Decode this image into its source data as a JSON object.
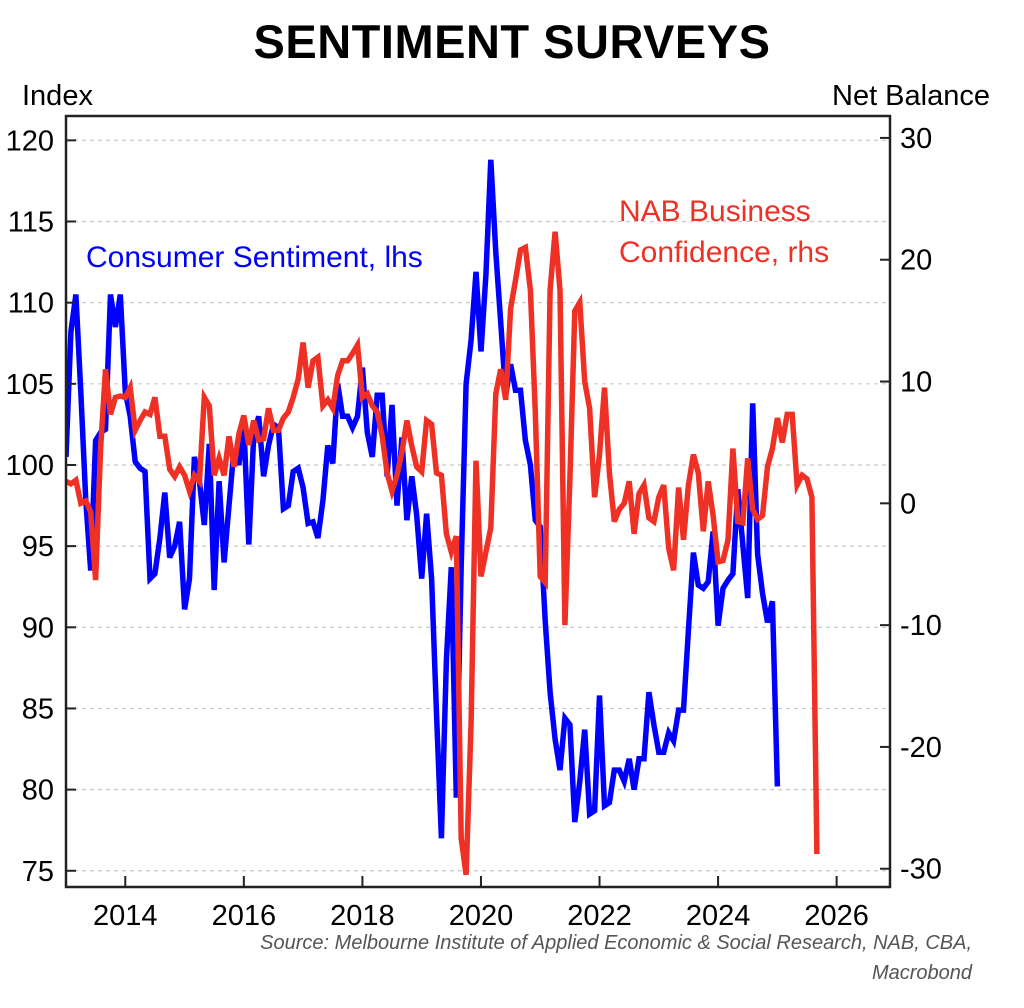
{
  "chart_data": {
    "type": "line",
    "title": "SENTIMENT SURVEYS",
    "lhs_label": "Index",
    "rhs_label": "Net Balance",
    "source_line1": "Source: Melbourne Institute of Applied Economic & Social Research, NAB, CBA,",
    "source_line2": "Macrobond",
    "x_ticks": [
      "2014",
      "2016",
      "2018",
      "2020",
      "2022",
      "2024",
      "2026"
    ],
    "x_tick_values": [
      2014,
      2016,
      2018,
      2020,
      2022,
      2024,
      2026
    ],
    "xlim": [
      2013.0,
      2026.9
    ],
    "lhs_ticks": [
      "120",
      "115",
      "110",
      "105",
      "100",
      "95",
      "90",
      "85",
      "80",
      "75"
    ],
    "lhs_tick_values": [
      120,
      115,
      110,
      105,
      100,
      95,
      90,
      85,
      80,
      75
    ],
    "lhs_ylim": [
      74,
      121.5
    ],
    "rhs_ticks": [
      "30",
      "20",
      "10",
      "0",
      "-10",
      "-20",
      "-30"
    ],
    "rhs_tick_values": [
      30,
      20,
      10,
      0,
      -10,
      -20,
      -30
    ],
    "rhs_ylim": [
      -31.5,
      31.8
    ],
    "grid": true,
    "series": [
      {
        "name": "Consumer Sentiment, lhs",
        "axis": "lhs",
        "color": "#0000ff",
        "x_start": 2013.0,
        "x_step_months": 1,
        "values": [
          100.5,
          108.2,
          110.5,
          104.5,
          97.8,
          93.5,
          101.5,
          102.0,
          102.2,
          110.5,
          108.5,
          110.5,
          104.5,
          103.0,
          100.2,
          99.8,
          99.6,
          93.0,
          93.3,
          95.5,
          98.3,
          94.3,
          95.0,
          96.5,
          91.1,
          93.0,
          100.5,
          99.0,
          96.3,
          101.3,
          92.3,
          99.0,
          94.0,
          97.5,
          101.0,
          100.0,
          102.5,
          95.1,
          101.8,
          103.0,
          99.3,
          101.2,
          102.5,
          102.3,
          97.3,
          97.5,
          99.6,
          99.8,
          98.6,
          96.4,
          96.5,
          95.5,
          97.8,
          101.2,
          100.1,
          105.0,
          103.0,
          103.0,
          102.3,
          103.0,
          106.0,
          102.0,
          100.5,
          104.3,
          104.3,
          99.3,
          103.7,
          97.5,
          101.7,
          96.6,
          99.3,
          96.9,
          93.0,
          97.0,
          93.0,
          84.7,
          77.0,
          88.0,
          93.7,
          79.5,
          93.8,
          105.0,
          107.7,
          111.9,
          107.0,
          111.7,
          118.8,
          113.1,
          108.8,
          104.3,
          106.2,
          104.6,
          104.6,
          101.5,
          100.0,
          96.6,
          96.2,
          90.4,
          86.0,
          83.1,
          81.2,
          84.4,
          84.0,
          78.0,
          80.5,
          83.7,
          78.5,
          78.7,
          85.8,
          79.0,
          79.2,
          81.2,
          81.2,
          80.5,
          81.9,
          80.0,
          81.9,
          81.9,
          86.0,
          84.0,
          82.3,
          82.3,
          83.5,
          83.0,
          84.9,
          84.9,
          89.8,
          94.6,
          92.6,
          92.4,
          92.8,
          95.9,
          90.1,
          92.4,
          92.9,
          93.3,
          98.5,
          95.1,
          91.8,
          103.8,
          94.5,
          92.1,
          90.3,
          91.6,
          80.2
        ]
      },
      {
        "name": "NAB Business Confidence, rhs",
        "axis": "rhs",
        "color": "#ee3124",
        "x_start": 2013.0,
        "x_step_months": 1,
        "values": [
          1.8,
          1.6,
          1.9,
          0.0,
          0.2,
          -0.7,
          -6.3,
          4.5,
          11.0,
          7.3,
          8.7,
          8.8,
          8.7,
          9.5,
          6.0,
          6.8,
          7.5,
          7.3,
          8.7,
          5.5,
          5.5,
          2.8,
          2.2,
          3.0,
          2.3,
          1.0,
          2.3,
          1.8,
          8.7,
          8.0,
          2.3,
          3.7,
          2.3,
          5.5,
          3.0,
          5.7,
          7.2,
          4.8,
          6.8,
          5.2,
          5.3,
          7.8,
          6.0,
          6.0,
          7.0,
          7.5,
          8.7,
          10.2,
          13.2,
          9.5,
          11.7,
          12.0,
          8.0,
          8.5,
          7.8,
          10.5,
          11.7,
          11.7,
          12.3,
          13.0,
          8.7,
          9.0,
          8.0,
          7.5,
          5.5,
          2.5,
          1.0,
          2.3,
          4.2,
          6.8,
          4.7,
          3.0,
          2.6,
          6.8,
          6.5,
          2.5,
          2.3,
          -2.5,
          -4.0,
          -2.7,
          -27.5,
          -30.5,
          -18.0,
          3.5,
          -6.0,
          -4.0,
          -2.0,
          9.0,
          11.0,
          8.5,
          16.0,
          18.3,
          20.8,
          21.0,
          17.5,
          7.5,
          -6.0,
          -6.5,
          17.5,
          22.3,
          17.5,
          -10.0,
          2.0,
          15.8,
          16.5,
          10.0,
          7.8,
          0.5,
          4.0,
          9.5,
          2.5,
          -1.5,
          -0.5,
          0.0,
          1.8,
          -2.5,
          0.8,
          1.5,
          -1.2,
          -1.5,
          0.5,
          1.5,
          -3.7,
          -5.5,
          1.3,
          -3.0,
          1.5,
          4.0,
          2.5,
          -2.3,
          1.8,
          -1.0,
          -4.8,
          -4.7,
          -3.0,
          4.5,
          -1.5,
          -1.6,
          3.7,
          -0.5,
          -1.3,
          -1.0,
          3.0,
          4.5,
          7.0,
          5.0,
          7.3,
          7.3,
          1.5,
          2.3,
          2.0,
          0.5,
          -28.8
        ]
      }
    ],
    "annotations": [
      {
        "text": "Consumer Sentiment, lhs",
        "color": "#0000ff"
      },
      {
        "text": "NAB Business",
        "color": "#ee3124"
      },
      {
        "text": "Confidence, rhs",
        "color": "#ee3124"
      }
    ]
  }
}
